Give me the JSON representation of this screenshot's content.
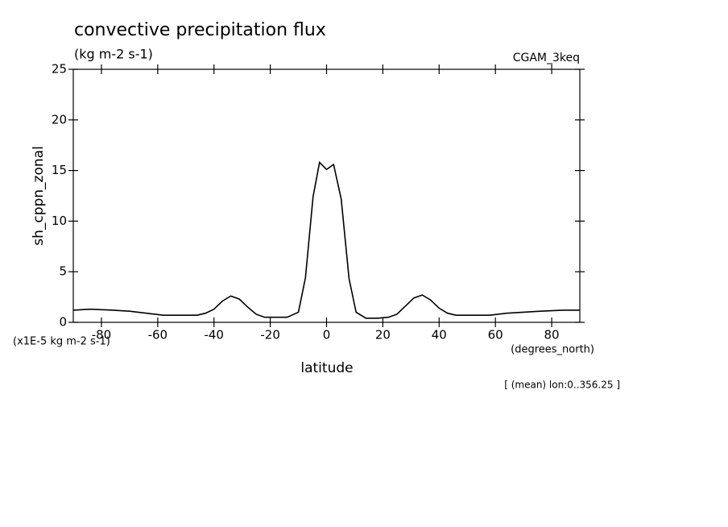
{
  "chart_data": {
    "type": "line",
    "title": "convective precipitation flux",
    "subtitle": "(kg m-2 s-1)",
    "dataset": "CGAM_3keq",
    "y_label": "sh_cppn_zonal",
    "y_units": "(x1E-5 kg m-2 s-1)",
    "x_label": "latitude",
    "x_units": "(degrees_north)",
    "footnote": "[ (mean) lon:0..356.25 ]",
    "x": [
      -90,
      -84,
      -76,
      -70,
      -64,
      -58,
      -52,
      -46,
      -43,
      -40,
      -37,
      -34,
      -31,
      -28,
      -25,
      -22,
      -18,
      -14,
      -10,
      -7.5,
      -4.8,
      -2.5,
      0,
      2.5,
      5.2,
      8,
      10.5,
      14,
      18,
      22,
      25,
      28,
      31,
      34,
      37,
      40,
      43,
      46,
      52,
      58,
      64,
      70,
      76,
      84,
      90
    ],
    "series": [
      {
        "name": "sh_cppn_zonal",
        "color": "#000000",
        "values": [
          1.2,
          1.3,
          1.2,
          1.1,
          0.9,
          0.7,
          0.7,
          0.7,
          0.9,
          1.3,
          2.1,
          2.6,
          2.3,
          1.5,
          0.8,
          0.5,
          0.5,
          0.5,
          1.0,
          4.4,
          12.4,
          15.8,
          15.1,
          15.6,
          12.2,
          4.3,
          1.0,
          0.4,
          0.4,
          0.5,
          0.8,
          1.6,
          2.4,
          2.7,
          2.2,
          1.4,
          0.9,
          0.7,
          0.7,
          0.7,
          0.9,
          1.0,
          1.1,
          1.2,
          1.2
        ]
      }
    ],
    "xlim": [
      -90,
      90
    ],
    "xticks": [
      -80,
      -60,
      -40,
      -20,
      0,
      20,
      40,
      60,
      80
    ],
    "ylim": [
      0,
      25
    ],
    "yticks": [
      0,
      5,
      10,
      15,
      20,
      25
    ]
  }
}
